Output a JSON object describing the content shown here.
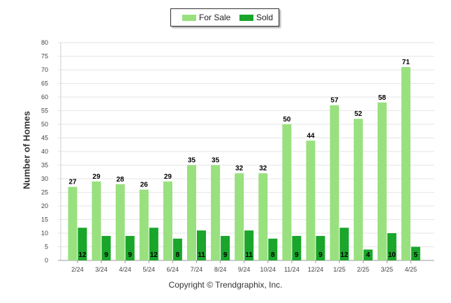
{
  "chart_data": {
    "type": "bar",
    "title": "",
    "xlabel": "",
    "ylabel": "Number of Homes",
    "ylim": [
      0,
      80
    ],
    "yticks": [
      0,
      5,
      10,
      15,
      20,
      25,
      30,
      35,
      40,
      45,
      50,
      55,
      60,
      65,
      70,
      75,
      80
    ],
    "categories": [
      "2/24",
      "3/24",
      "4/24",
      "5/24",
      "6/24",
      "7/24",
      "8/24",
      "9/24",
      "10/24",
      "11/24",
      "12/24",
      "1/25",
      "2/25",
      "3/25",
      "4/25"
    ],
    "series": [
      {
        "name": "For Sale",
        "color": "#99e07f",
        "values": [
          27,
          29,
          28,
          26,
          29,
          35,
          35,
          32,
          32,
          50,
          44,
          57,
          52,
          58,
          71
        ]
      },
      {
        "name": "Sold",
        "color": "#1aa52b",
        "values": [
          12,
          9,
          9,
          12,
          8,
          11,
          9,
          11,
          8,
          9,
          9,
          12,
          4,
          10,
          5
        ]
      }
    ],
    "legend": "top-center",
    "grid": true
  },
  "footer": {
    "copyright": "Copyright © Trendgraphix, Inc."
  }
}
